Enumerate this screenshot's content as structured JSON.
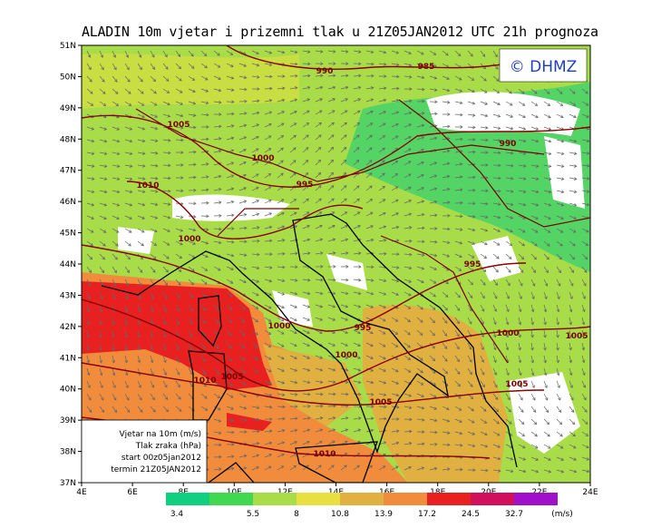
{
  "header": {
    "title": "ALADIN 10m vjetar i prizemni tlak u 21Z05JAN2012 UTC 21h prognoza",
    "logo": "© DHMZ"
  },
  "axes": {
    "latitude": [
      "51N",
      "50N",
      "49N",
      "48N",
      "47N",
      "46N",
      "45N",
      "44N",
      "43N",
      "42N",
      "41N",
      "40N",
      "39N",
      "38N",
      "37N"
    ],
    "longitude": [
      "4E",
      "6E",
      "8E",
      "10E",
      "12E",
      "14E",
      "16E",
      "18E",
      "20E",
      "22E",
      "24E"
    ]
  },
  "isobars": [
    "990",
    "985",
    "990",
    "1005",
    "1000",
    "1010",
    "995",
    "1000",
    "995",
    "1000",
    "995",
    "1000",
    "1005",
    "1000",
    "1010",
    "1005",
    "1005",
    "1005",
    "1010"
  ],
  "legend": {
    "lines": [
      "Vjetar na 10m (m/s)",
      "Tlak zraka (hPa)",
      "start 00z05jan2012",
      "termin 21Z05JAN2012"
    ]
  },
  "colorbar": {
    "labels": [
      "3.4",
      "5.5",
      "8",
      "10.8",
      "13.9",
      "17.2",
      "24.5",
      "32.7"
    ],
    "unit": "(m/s)"
  }
}
